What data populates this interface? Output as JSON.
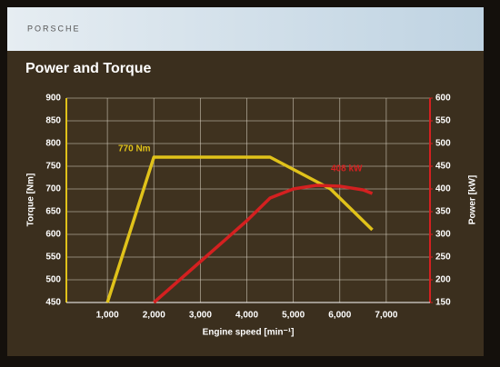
{
  "header": {
    "brand": "PORSCHE"
  },
  "chart_data": {
    "type": "line",
    "title": "Power and Torque",
    "xlabel": "Engine speed [min⁻¹]",
    "ylabel": "Torque [Nm]",
    "y2label": "Power [kW]",
    "xlim": [
      0,
      8000
    ],
    "xticks": [
      {
        "value": 1000,
        "label": "1,000"
      },
      {
        "value": 2000,
        "label": "2,000"
      },
      {
        "value": 3000,
        "label": "3,000"
      },
      {
        "value": 4000,
        "label": "4,000"
      },
      {
        "value": 5000,
        "label": "5,000"
      },
      {
        "value": 6000,
        "label": "6,000"
      },
      {
        "value": 7000,
        "label": "7,000"
      }
    ],
    "ylim": [
      450,
      900
    ],
    "yticks": [
      450,
      500,
      550,
      600,
      650,
      700,
      750,
      800,
      850,
      900
    ],
    "y2lim": [
      150,
      600
    ],
    "y2ticks": [
      150,
      200,
      250,
      300,
      350,
      400,
      450,
      500,
      550,
      600
    ],
    "grid": true,
    "series": [
      {
        "color": "#e0c21a",
        "x": [
          1000,
          2000,
          4500,
          5800,
          6700
        ],
        "values": [
          450,
          770,
          770,
          700,
          610
        ]
      },
      {
        "color": "#d42020",
        "axis": "y2",
        "x": [
          2000,
          3000,
          4000,
          4500,
          5000,
          5500,
          6000,
          6500,
          6700
        ],
        "values": [
          150,
          240,
          330,
          380,
          400,
          408,
          406,
          398,
          390
        ]
      }
    ],
    "annotations": [
      {
        "text": "770 Nm"
      },
      {
        "text": "408 kW"
      }
    ]
  }
}
